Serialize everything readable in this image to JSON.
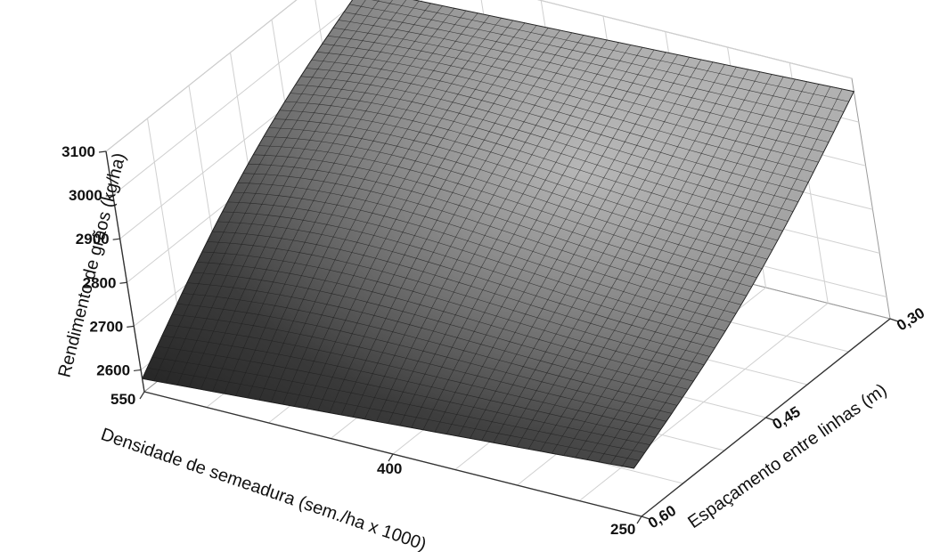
{
  "chart_data": {
    "type": "surface",
    "title": "",
    "xlabel": "Densidade de semeadura (sem./ha x 1000)",
    "ylabel": "Espaçamento entre linhas (m)",
    "zlabel": "Rendimento de grãos (kg/ha)",
    "x_ticks": [
      "550",
      "400",
      "250"
    ],
    "y_ticks": [
      "0,30",
      "0,45",
      "0,60"
    ],
    "z_ticks": [
      "2600",
      "2700",
      "2800",
      "2900",
      "3000",
      "3100"
    ],
    "xlim": [
      250,
      550
    ],
    "ylim": [
      0.3,
      0.6
    ],
    "zlim": [
      2550,
      3100
    ],
    "grid": true,
    "surface_points": [
      {
        "density": 550,
        "spacing": 0.6,
        "yield": 2580
      },
      {
        "density": 550,
        "spacing": 0.3,
        "yield": 3020
      },
      {
        "density": 250,
        "spacing": 0.6,
        "yield": 2660
      },
      {
        "density": 250,
        "spacing": 0.3,
        "yield": 3070
      },
      {
        "density": 400,
        "spacing": 0.45,
        "yield": 2880
      }
    ]
  }
}
